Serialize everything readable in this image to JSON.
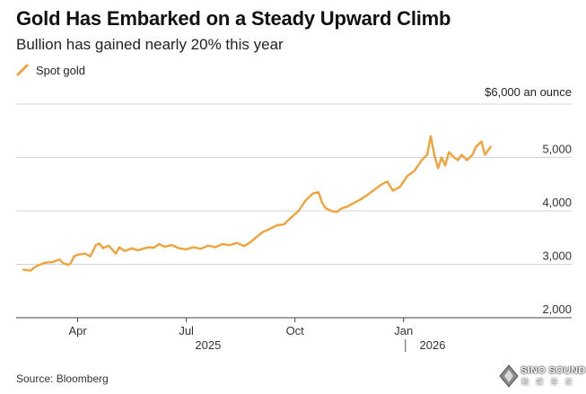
{
  "chart_data": {
    "type": "line",
    "title": "Gold Has Embarked on a Steady Upward Climb",
    "subtitle": "Bullion has gained nearly 20% this year",
    "legend": [
      {
        "name": "Spot gold",
        "color": "#f0a33a"
      }
    ],
    "unit_label": "$6,000 an ounce",
    "y_ticks": [
      {
        "value": 6000,
        "label": "$6,000 an ounce"
      },
      {
        "value": 5000,
        "label": "5,000"
      },
      {
        "value": 4000,
        "label": "4,000"
      },
      {
        "value": 3000,
        "label": "3,000"
      },
      {
        "value": 2000,
        "label": "2,000"
      }
    ],
    "ylim": [
      2000,
      6000
    ],
    "xlim": [
      0,
      14.3
    ],
    "x_ticks": [
      {
        "value": 1.7,
        "label": "Apr"
      },
      {
        "value": 4.7,
        "label": "Jul"
      },
      {
        "value": 7.7,
        "label": "Oct"
      },
      {
        "value": 10.7,
        "label": "Jan"
      }
    ],
    "year_labels": [
      {
        "value": 5.3,
        "label": "2025"
      },
      {
        "value": 11.5,
        "label": "2026"
      }
    ],
    "year_divider": 10.75,
    "grid": true,
    "series": [
      {
        "name": "Spot gold",
        "color": "#f0a33a",
        "x": [
          0.2,
          0.4,
          0.5,
          0.6,
          0.8,
          1.0,
          1.2,
          1.3,
          1.45,
          1.5,
          1.6,
          1.7,
          1.9,
          2.05,
          2.2,
          2.3,
          2.4,
          2.55,
          2.65,
          2.75,
          2.85,
          3.0,
          3.2,
          3.35,
          3.5,
          3.65,
          3.8,
          3.95,
          4.1,
          4.3,
          4.5,
          4.7,
          4.9,
          5.1,
          5.3,
          5.5,
          5.7,
          5.9,
          6.1,
          6.3,
          6.5,
          6.6,
          6.8,
          7.0,
          7.2,
          7.4,
          7.6,
          7.8,
          8.0,
          8.2,
          8.35,
          8.45,
          8.55,
          8.7,
          8.85,
          9.0,
          9.15,
          9.3,
          9.5,
          9.7,
          9.9,
          10.1,
          10.25,
          10.4,
          10.6,
          10.8,
          11.0,
          11.2,
          11.35,
          11.45,
          11.55,
          11.65,
          11.75,
          11.85,
          11.95,
          12.1,
          12.2,
          12.3,
          12.45,
          12.6,
          12.7,
          12.85,
          12.95,
          13.1
        ],
        "y": [
          2900,
          2880,
          2940,
          2980,
          3030,
          3040,
          3090,
          3020,
          2990,
          3010,
          3150,
          3180,
          3200,
          3150,
          3360,
          3390,
          3300,
          3350,
          3280,
          3200,
          3320,
          3250,
          3300,
          3260,
          3290,
          3320,
          3310,
          3380,
          3330,
          3360,
          3300,
          3280,
          3320,
          3290,
          3350,
          3320,
          3380,
          3360,
          3400,
          3340,
          3430,
          3490,
          3600,
          3660,
          3730,
          3750,
          3880,
          4000,
          4200,
          4330,
          4350,
          4150,
          4050,
          4000,
          3980,
          4050,
          4080,
          4140,
          4210,
          4300,
          4400,
          4500,
          4550,
          4380,
          4450,
          4650,
          4750,
          4950,
          5050,
          5400,
          5050,
          4800,
          5000,
          4850,
          5100,
          5000,
          4950,
          5050,
          4950,
          5050,
          5200,
          5300,
          5050,
          5200
        ]
      }
    ]
  },
  "source": "Source: Bloomberg",
  "logo": {
    "text": "SINO SOUND",
    "sub": "翻 譯 專 家"
  }
}
